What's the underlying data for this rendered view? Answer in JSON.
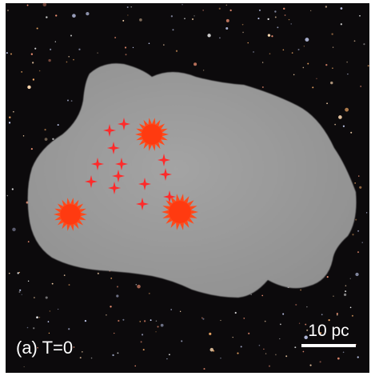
{
  "panel_label": "(a) T=0",
  "scale_bar": {
    "label": "10 pc"
  }
}
